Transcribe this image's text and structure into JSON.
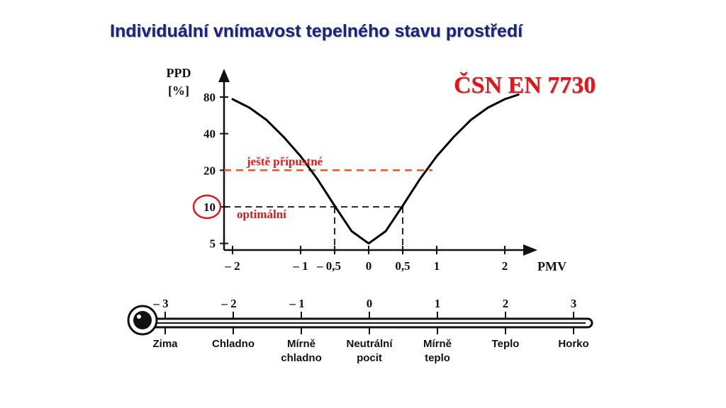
{
  "title": "Individuální vnímavost tepelného stavu prostředí",
  "standard": "ČSN EN 7730",
  "colors": {
    "title": "#1a237e",
    "standard": "#e0161d",
    "annotation": "#d81b1b",
    "acceptable_line": "#e8542a",
    "curve": "#000000"
  },
  "chart_data": {
    "type": "line",
    "title": "",
    "ylabel_line1": "PPD",
    "ylabel_line2": "[%]",
    "xlabel": "PMV",
    "x_ticks": [
      {
        "value": -2,
        "label": "– 2"
      },
      {
        "value": -1,
        "label": "– 1"
      },
      {
        "value": -0.5,
        "label": "– 0,5"
      },
      {
        "value": 0,
        "label": "0"
      },
      {
        "value": 0.5,
        "label": "0,5"
      },
      {
        "value": 1,
        "label": "1"
      },
      {
        "value": 2,
        "label": "2"
      }
    ],
    "y_ticks": [
      {
        "value": 5,
        "label": "5"
      },
      {
        "value": 10,
        "label": "10"
      },
      {
        "value": 20,
        "label": "20"
      },
      {
        "value": 40,
        "label": "40"
      },
      {
        "value": 80,
        "label": "80"
      }
    ],
    "xlim": [
      -2.2,
      2.3
    ],
    "series": [
      {
        "x": [
          -2.0,
          -1.75,
          -1.5,
          -1.25,
          -1.0,
          -0.75,
          -0.5,
          -0.25,
          0.0,
          0.25,
          0.5,
          0.75,
          1.0,
          1.25,
          1.5,
          1.75,
          2.0,
          2.2
        ],
        "y": [
          76.8,
          65.3,
          51.8,
          37.6,
          26.1,
          16.8,
          10.2,
          6.3,
          5.0,
          6.3,
          10.2,
          16.8,
          26.1,
          37.6,
          51.8,
          65.3,
          76.8,
          83.7
        ]
      }
    ],
    "reference_lines": [
      {
        "y": 20,
        "label": "ještě přípustné",
        "style": "dashed"
      },
      {
        "y": 10,
        "label": "optimální",
        "style": "dashed",
        "x_range": [
          -0.5,
          0.5
        ]
      }
    ],
    "highlighted_tick": 10
  },
  "sensation_scale": {
    "points": [
      {
        "value": -3,
        "number": "– 3",
        "label_lines": [
          "Zima"
        ]
      },
      {
        "value": -2,
        "number": "– 2",
        "label_lines": [
          "Chladno"
        ]
      },
      {
        "value": -1,
        "number": "– 1",
        "label_lines": [
          "Mírně",
          "chladno"
        ]
      },
      {
        "value": 0,
        "number": "0",
        "label_lines": [
          "Neutrální",
          "pocit"
        ]
      },
      {
        "value": 1,
        "number": "1",
        "label_lines": [
          "Mírně",
          "teplo"
        ]
      },
      {
        "value": 2,
        "number": "2",
        "label_lines": [
          "Teplo"
        ]
      },
      {
        "value": 3,
        "number": "3",
        "label_lines": [
          "Horko"
        ]
      }
    ]
  }
}
